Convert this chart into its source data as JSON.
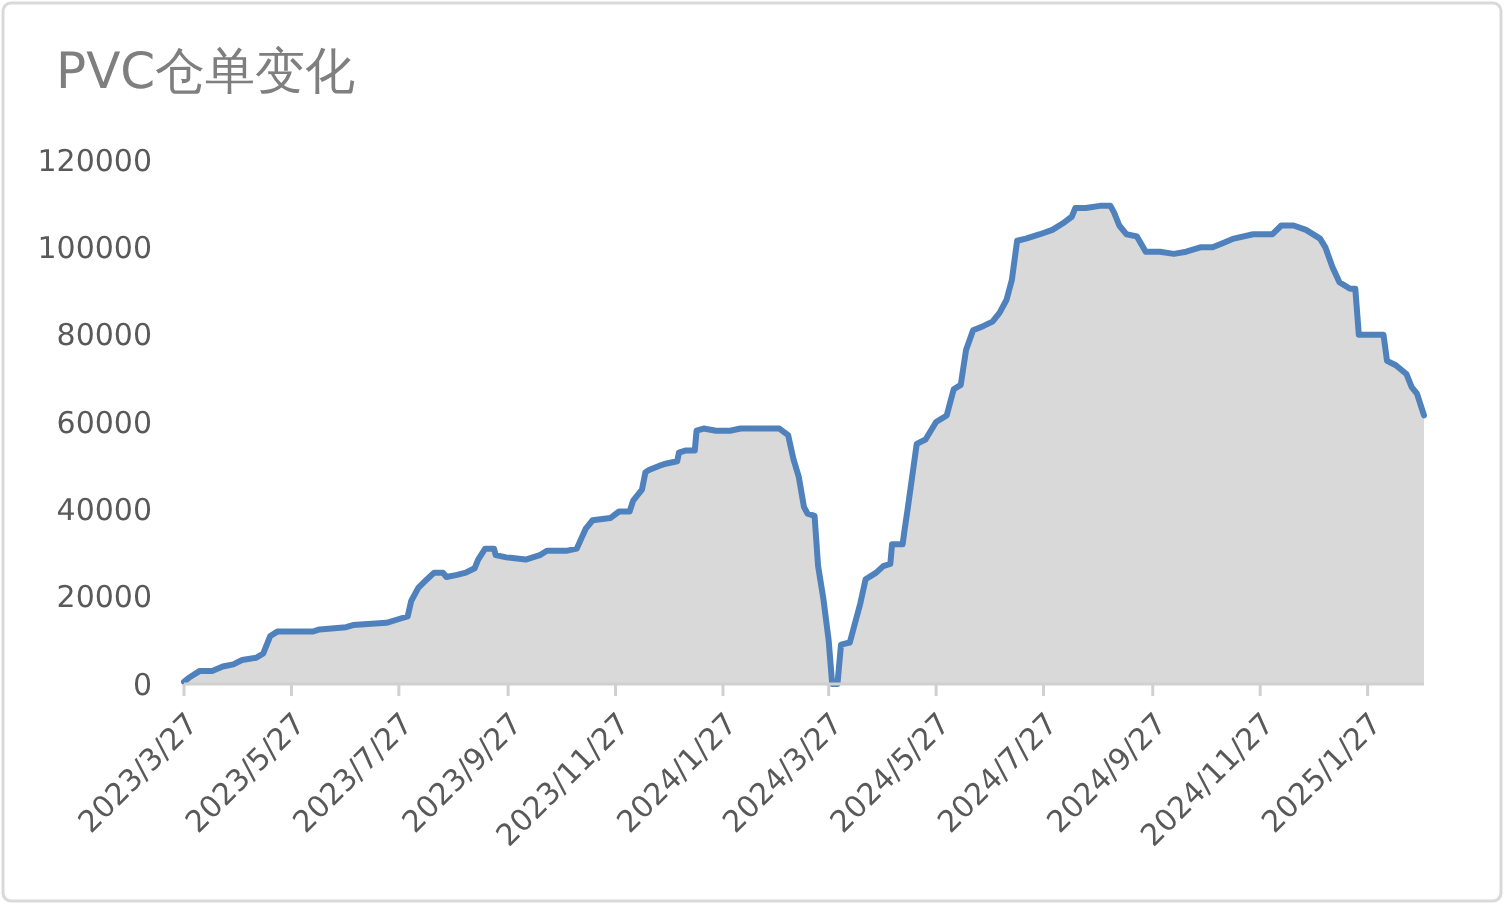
{
  "chart_data": {
    "type": "area",
    "title": "PVC仓单变化",
    "x": [
      "2023-03-27",
      "2023-03-30",
      "2023-04-05",
      "2023-04-12",
      "2023-04-18",
      "2023-04-24",
      "2023-04-29",
      "2023-05-07",
      "2023-05-11",
      "2023-05-15",
      "2023-05-19",
      "2023-05-24",
      "2023-06-08",
      "2023-06-12",
      "2023-06-27",
      "2023-07-01",
      "2023-07-20",
      "2023-07-28",
      "2023-08-01",
      "2023-08-03",
      "2023-08-07",
      "2023-08-12",
      "2023-08-16",
      "2023-08-21",
      "2023-08-23",
      "2023-08-29",
      "2023-09-03",
      "2023-09-08",
      "2023-09-10",
      "2023-09-14",
      "2023-09-19",
      "2023-09-20",
      "2023-09-26",
      "2023-10-07",
      "2023-10-15",
      "2023-10-19",
      "2023-10-30",
      "2023-11-05",
      "2023-11-10",
      "2023-11-14",
      "2023-11-24",
      "2023-11-29",
      "2023-12-05",
      "2023-12-07",
      "2023-12-12",
      "2023-12-14",
      "2023-12-16",
      "2023-12-22",
      "2023-12-26",
      "2024-01-01",
      "2024-01-02",
      "2024-01-06",
      "2024-01-11",
      "2024-01-12",
      "2024-01-16",
      "2024-01-23",
      "2024-01-31",
      "2024-02-06",
      "2024-02-28",
      "2024-03-04",
      "2024-03-07",
      "2024-03-10",
      "2024-03-13",
      "2024-03-15",
      "2024-03-19",
      "2024-03-21",
      "2024-03-24",
      "2024-03-27",
      "2024-03-29",
      "2024-04-01",
      "2024-04-03",
      "2024-04-08",
      "2024-04-14",
      "2024-04-17",
      "2024-04-23",
      "2024-04-27",
      "2024-05-01",
      "2024-05-02",
      "2024-05-08",
      "2024-05-09",
      "2024-05-11",
      "2024-05-16",
      "2024-05-21",
      "2024-05-27",
      "2024-06-02",
      "2024-06-06",
      "2024-06-10",
      "2024-06-13",
      "2024-06-17",
      "2024-06-23",
      "2024-06-28",
      "2024-07-02",
      "2024-07-06",
      "2024-07-09",
      "2024-07-12",
      "2024-07-17",
      "2024-07-25",
      "2024-08-01",
      "2024-08-07",
      "2024-08-12",
      "2024-08-14",
      "2024-08-20",
      "2024-08-28",
      "2024-09-03",
      "2024-09-05",
      "2024-09-08",
      "2024-09-12",
      "2024-09-18",
      "2024-09-23",
      "2024-10-01",
      "2024-10-09",
      "2024-10-16",
      "2024-10-24",
      "2024-10-31",
      "2024-11-06",
      "2024-11-12",
      "2024-11-23",
      "2024-12-04",
      "2024-12-09",
      "2024-12-16",
      "2024-12-23",
      "2024-12-31",
      "2025-01-03",
      "2025-01-07",
      "2025-01-11",
      "2025-01-17",
      "2025-01-20",
      "2025-01-22",
      "2025-02-05",
      "2025-02-07",
      "2025-02-12",
      "2025-02-18",
      "2025-02-21",
      "2025-02-24",
      "2025-02-28"
    ],
    "series": [
      {
        "color": "#4f81bd",
        "values": [
          500,
          1500,
          3000,
          3000,
          4000,
          4500,
          5500,
          6000,
          7000,
          11000,
          12000,
          12000,
          12000,
          12500,
          13000,
          13500,
          14000,
          15000,
          15500,
          19000,
          22000,
          24000,
          25500,
          25500,
          24500,
          25000,
          25500,
          26500,
          28500,
          31000,
          31000,
          29500,
          29000,
          28500,
          29500,
          30500,
          30500,
          31000,
          35500,
          37500,
          38000,
          39500,
          39500,
          42000,
          44500,
          48500,
          49000,
          50000,
          50500,
          51000,
          53000,
          53500,
          53500,
          58000,
          58500,
          58000,
          58000,
          58500,
          58500,
          57000,
          51500,
          47500,
          40500,
          39000,
          38500,
          27000,
          19500,
          10000,
          0,
          0,
          9000,
          9500,
          18500,
          24000,
          25500,
          27000,
          27500,
          32000,
          32000,
          35000,
          40500,
          55000,
          56000,
          60000,
          61500,
          67500,
          68500,
          76500,
          81000,
          82000,
          83000,
          85000,
          88000,
          92500,
          101500,
          102000,
          103000,
          104000,
          105500,
          107000,
          109000,
          109000,
          109500,
          109500,
          108000,
          105000,
          103000,
          102500,
          99000,
          99000,
          98500,
          99000,
          100000,
          100000,
          101000,
          102000,
          103000,
          103000,
          105000,
          105000,
          104000,
          102000,
          100000,
          95500,
          92000,
          90500,
          90500,
          80000,
          80000,
          74000,
          73000,
          71000,
          68000,
          66500,
          61500
        ]
      }
    ],
    "xlim": [
      "2023-03-27",
      "2025-02-28"
    ],
    "xticks": [
      {
        "value": "2023-03-27",
        "label": "2023/3/27"
      },
      {
        "value": "2023-05-27",
        "label": "2023/5/27"
      },
      {
        "value": "2023-07-27",
        "label": "2023/7/27"
      },
      {
        "value": "2023-09-27",
        "label": "2023/9/27"
      },
      {
        "value": "2023-11-27",
        "label": "2023/11/27"
      },
      {
        "value": "2024-01-27",
        "label": "2024/1/27"
      },
      {
        "value": "2024-03-27",
        "label": "2024/3/27"
      },
      {
        "value": "2024-05-27",
        "label": "2024/5/27"
      },
      {
        "value": "2024-07-27",
        "label": "2024/7/27"
      },
      {
        "value": "2024-09-27",
        "label": "2024/9/27"
      },
      {
        "value": "2024-11-27",
        "label": "2024/11/27"
      },
      {
        "value": "2025-01-27",
        "label": "2025/1/27"
      }
    ],
    "ylim": [
      0,
      120000
    ],
    "yticks": [
      0,
      20000,
      40000,
      60000,
      80000,
      100000,
      120000
    ],
    "line_style": "solid"
  }
}
